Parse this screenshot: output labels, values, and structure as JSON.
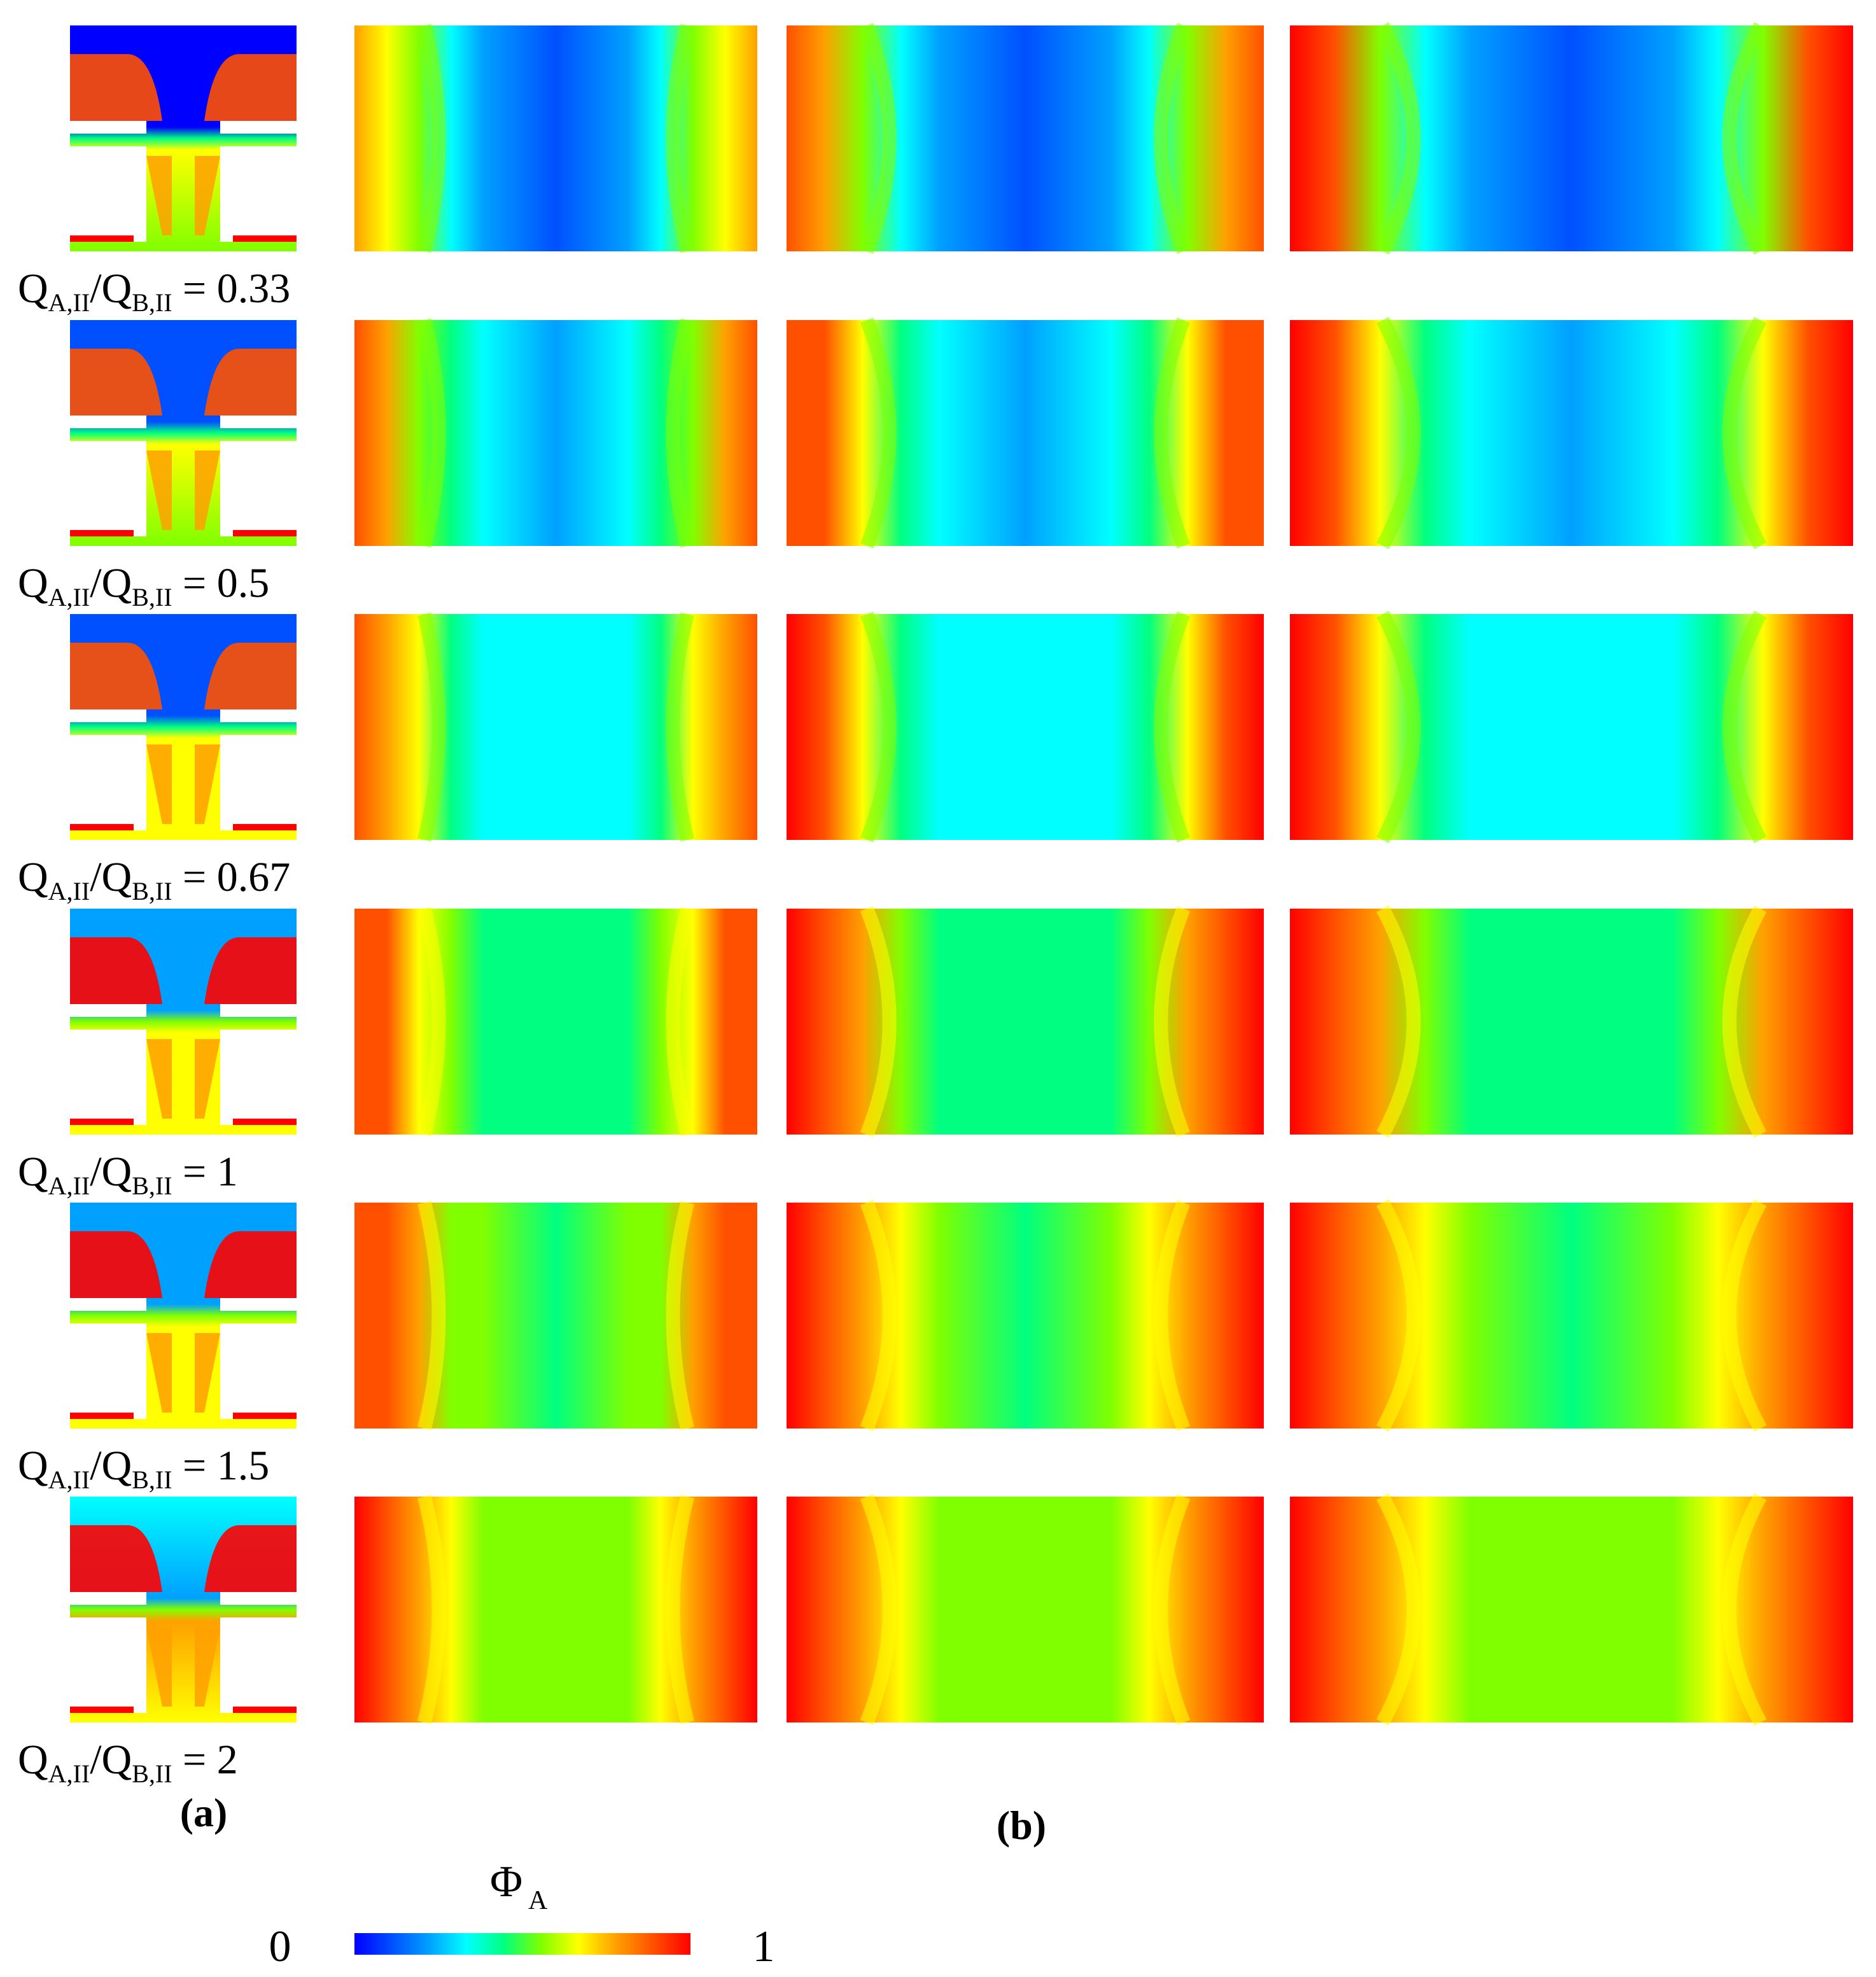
{
  "panel_labels": {
    "a": "(a)",
    "b": "(b)"
  },
  "ratio_prefix": {
    "Q": "Q",
    "sub_A": "A,II",
    "slash": "/",
    "sub_B": "B,II",
    "equals": "="
  },
  "rows": [
    {
      "ratio": "0.33",
      "level": 0.0
    },
    {
      "ratio": "0.5",
      "level": 0.12
    },
    {
      "ratio": "0.67",
      "level": 0.22
    },
    {
      "ratio": "1",
      "level": 0.38
    },
    {
      "ratio": "1.5",
      "level": 0.45
    },
    {
      "ratio": "2",
      "level": 0.55
    }
  ],
  "colorbar": {
    "symbol": "Φ",
    "subscript": "A",
    "min": "0",
    "max": "1"
  },
  "colormap": [
    "#0000ff",
    "#0050ff",
    "#00a0ff",
    "#00ffff",
    "#00ff80",
    "#80ff00",
    "#ffff00",
    "#ffa000",
    "#ff5000",
    "#ff0000"
  ]
}
